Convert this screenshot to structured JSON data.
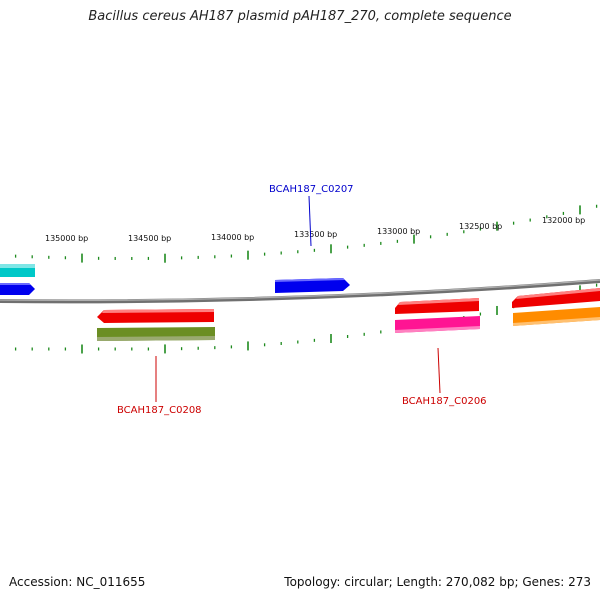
{
  "title": "Bacillus cereus AH187 plasmid pAH187_270, complete sequence",
  "footer": {
    "accession": "Accession: NC_011655",
    "info": "Topology: circular; Length: 270,082 bp; Genes: 273"
  },
  "tick_labels": [
    "135000 bp",
    "134500 bp",
    "134000 bp",
    "133500 bp",
    "133000 bp",
    "132500 bp",
    "132000 bp"
  ],
  "gene_labels": [
    {
      "id": "g207",
      "text": "BCAH187_C0207",
      "color": "#0000cc"
    },
    {
      "id": "g208",
      "text": "BCAH187_C0208",
      "color": "#cc0000"
    },
    {
      "id": "g206",
      "text": "BCAH187_C0206",
      "color": "#cc0000"
    }
  ],
  "colors": {
    "backbone": "#808080",
    "tick": "#1e8a1e",
    "red": "#ee0000",
    "blue": "#0000ee",
    "cyan": "#00c8c8",
    "olive": "#6b8e23",
    "magenta": "#ff1493",
    "orange": "#ff8c00"
  }
}
